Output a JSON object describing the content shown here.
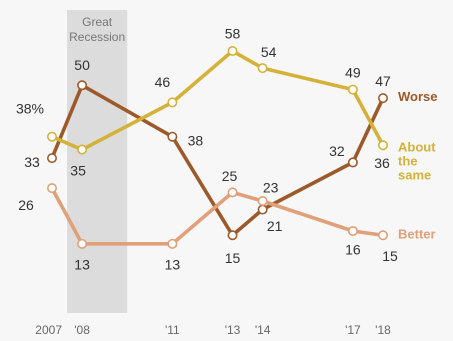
{
  "chart_data": {
    "type": "line",
    "title": "",
    "xlabel": "",
    "ylabel": "",
    "ylim": [
      10,
      60
    ],
    "grid": false,
    "legend": "none",
    "x": [
      2007,
      2008,
      2011,
      2013,
      2014,
      2017,
      2018
    ],
    "x_tick_labels": [
      "2007",
      "'08",
      "'11",
      "'13",
      "'14",
      "'17",
      "'18"
    ],
    "annotations": [
      {
        "text": [
          "Great",
          "Recession"
        ],
        "x_range": [
          2007.5,
          2009.5
        ],
        "shaded": true,
        "color": "#dcdcdc"
      }
    ],
    "series": [
      {
        "name": "Worse",
        "label_lines": [
          "Worse"
        ],
        "color": "#9c5a2b",
        "values": [
          33,
          50,
          38,
          15,
          21,
          32,
          47
        ],
        "value_labels": [
          "33",
          "50",
          "38",
          "15",
          "21",
          "32",
          "47"
        ]
      },
      {
        "name": "About the same",
        "label_lines": [
          "About",
          "the",
          "same"
        ],
        "color": "#d4b23a",
        "values": [
          38,
          35,
          46,
          58,
          54,
          49,
          36
        ],
        "value_labels": [
          "38%",
          "35",
          "46",
          "58",
          "54",
          "49",
          "36"
        ]
      },
      {
        "name": "Better",
        "label_lines": [
          "Better"
        ],
        "color": "#e0a07a",
        "values": [
          26,
          13,
          13,
          25,
          23,
          16,
          15
        ],
        "value_labels": [
          "26",
          "13",
          "13",
          "25",
          "23",
          "16",
          "15"
        ]
      }
    ]
  }
}
